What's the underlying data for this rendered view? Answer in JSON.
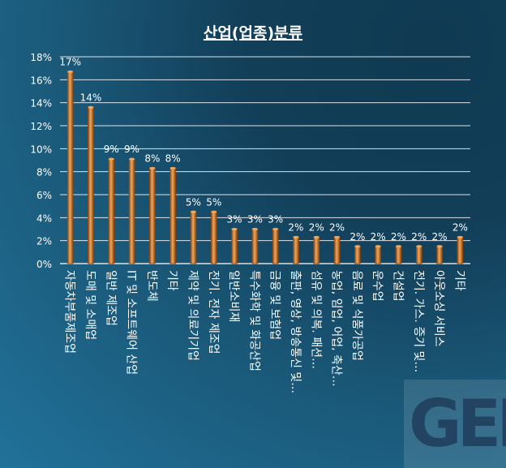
{
  "chart_data": {
    "type": "bar",
    "title": "산업(업종)분류",
    "xlabel": "",
    "ylabel": "",
    "ylim": [
      0,
      18
    ],
    "yticks": [
      "0%",
      "2%",
      "4%",
      "6%",
      "8%",
      "10%",
      "12%",
      "14%",
      "16%",
      "18%"
    ],
    "grid": true,
    "categories": [
      "자동차부품제조업",
      "도매 및 소매업",
      "일반 제조업",
      "IT 및 소프트웨어 산업",
      "반도체",
      "기타",
      "제약 및 의료기기업",
      "전기. 전자 제조업",
      "일반소비재",
      "특수화학 및 화공산업",
      "금융 및 보험업",
      "출판, 영상, 방송통신 및…",
      "섬유 및 의복. 패션…",
      "농업, 임업, 어업, 축산…",
      "음료 및 식품가공업",
      "운수업",
      "건설업",
      "전기. 가스. 증기 및…",
      "아웃소싱 서비스",
      "기타"
    ],
    "values": [
      16.7,
      13.6,
      9.1,
      9.1,
      8.3,
      8.3,
      4.5,
      4.5,
      3.0,
      3.0,
      3.0,
      2.3,
      2.3,
      2.3,
      1.5,
      1.5,
      1.5,
      1.5,
      1.5,
      2.3
    ],
    "data_labels": [
      "17%",
      "14%",
      "9%",
      "9%",
      "8%",
      "8%",
      "5%",
      "5%",
      "3%",
      "3%",
      "3%",
      "2%",
      "2%",
      "2%",
      "2%",
      "2%",
      "2%",
      "2%",
      "2%",
      "2%"
    ]
  },
  "logo": {
    "text": "GEN"
  },
  "colors": {
    "bar": "#d4782a",
    "bar_light": "#f0a85a",
    "bar_dark": "#8a4310",
    "grid": "#ffffff",
    "text": "#ffffff"
  }
}
